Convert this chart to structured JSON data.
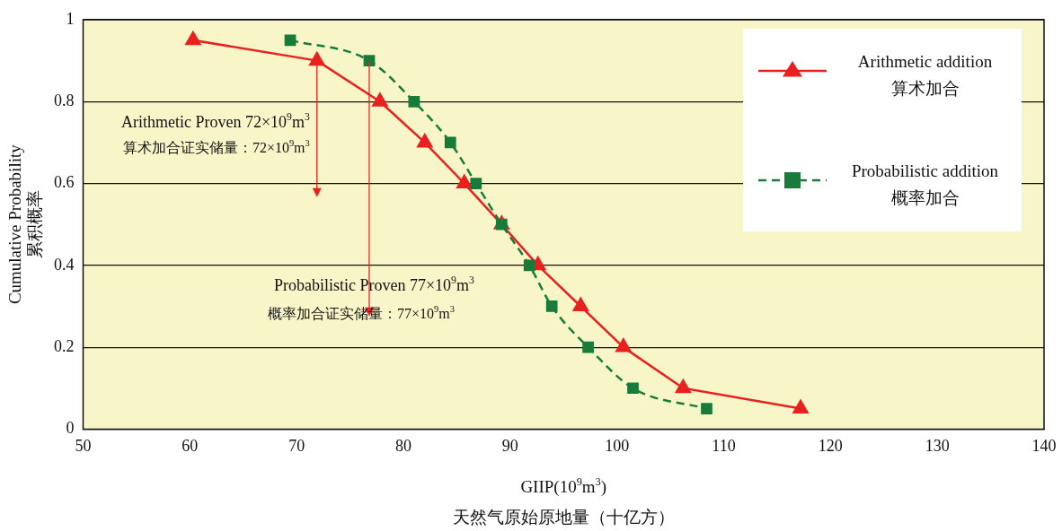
{
  "chart_data": {
    "type": "line",
    "xlabel": "GIIP(10$^{9}$m$^{3}$)\n天然气原始原地量（十亿方）",
    "ylabel": "Cumulative Probability\n累积概率",
    "xlim": [
      50,
      140
    ],
    "xticks": [
      50,
      60,
      70,
      80,
      90,
      100,
      110,
      120,
      130,
      140
    ],
    "ylim": [
      0,
      1
    ],
    "yticks": [
      0,
      0.2,
      0.4,
      0.6,
      0.8,
      1
    ],
    "grid": "y",
    "legend": "top right",
    "series": [
      {
        "name": "Arithmetic addition\n算术加合",
        "color": "#e8211f",
        "marker": "triangle",
        "line_style": "solid",
        "x": [
          60.3,
          71.9,
          77.8,
          82.0,
          85.7,
          89.2,
          92.6,
          96.6,
          100.6,
          106.2,
          117.2
        ],
        "values": [
          0.95,
          0.9,
          0.8,
          0.7,
          0.6,
          0.5,
          0.4,
          0.3,
          0.2,
          0.1,
          0.05
        ]
      },
      {
        "name": "Probabilistic addition\n概率加合",
        "color": "#177b3a",
        "marker": "square",
        "line_style": "dashed",
        "x": [
          69.4,
          76.8,
          81.0,
          84.4,
          86.8,
          89.2,
          91.8,
          93.9,
          97.3,
          101.5,
          108.4
        ],
        "values": [
          0.95,
          0.9,
          0.8,
          0.7,
          0.6,
          0.5,
          0.4,
          0.3,
          0.2,
          0.1,
          0.05
        ]
      }
    ],
    "annotations": [
      "Arithmetic Proven 72×10$^{9}$m$^{3}$",
      "算术加合证实储量：72×10$^{9}$m$^{3}$",
      "Probabilistic Proven 77×10$^{9}$m$^{3}$",
      "概率加合证实储量：77×10$^{9}$m$^{3}$"
    ]
  }
}
